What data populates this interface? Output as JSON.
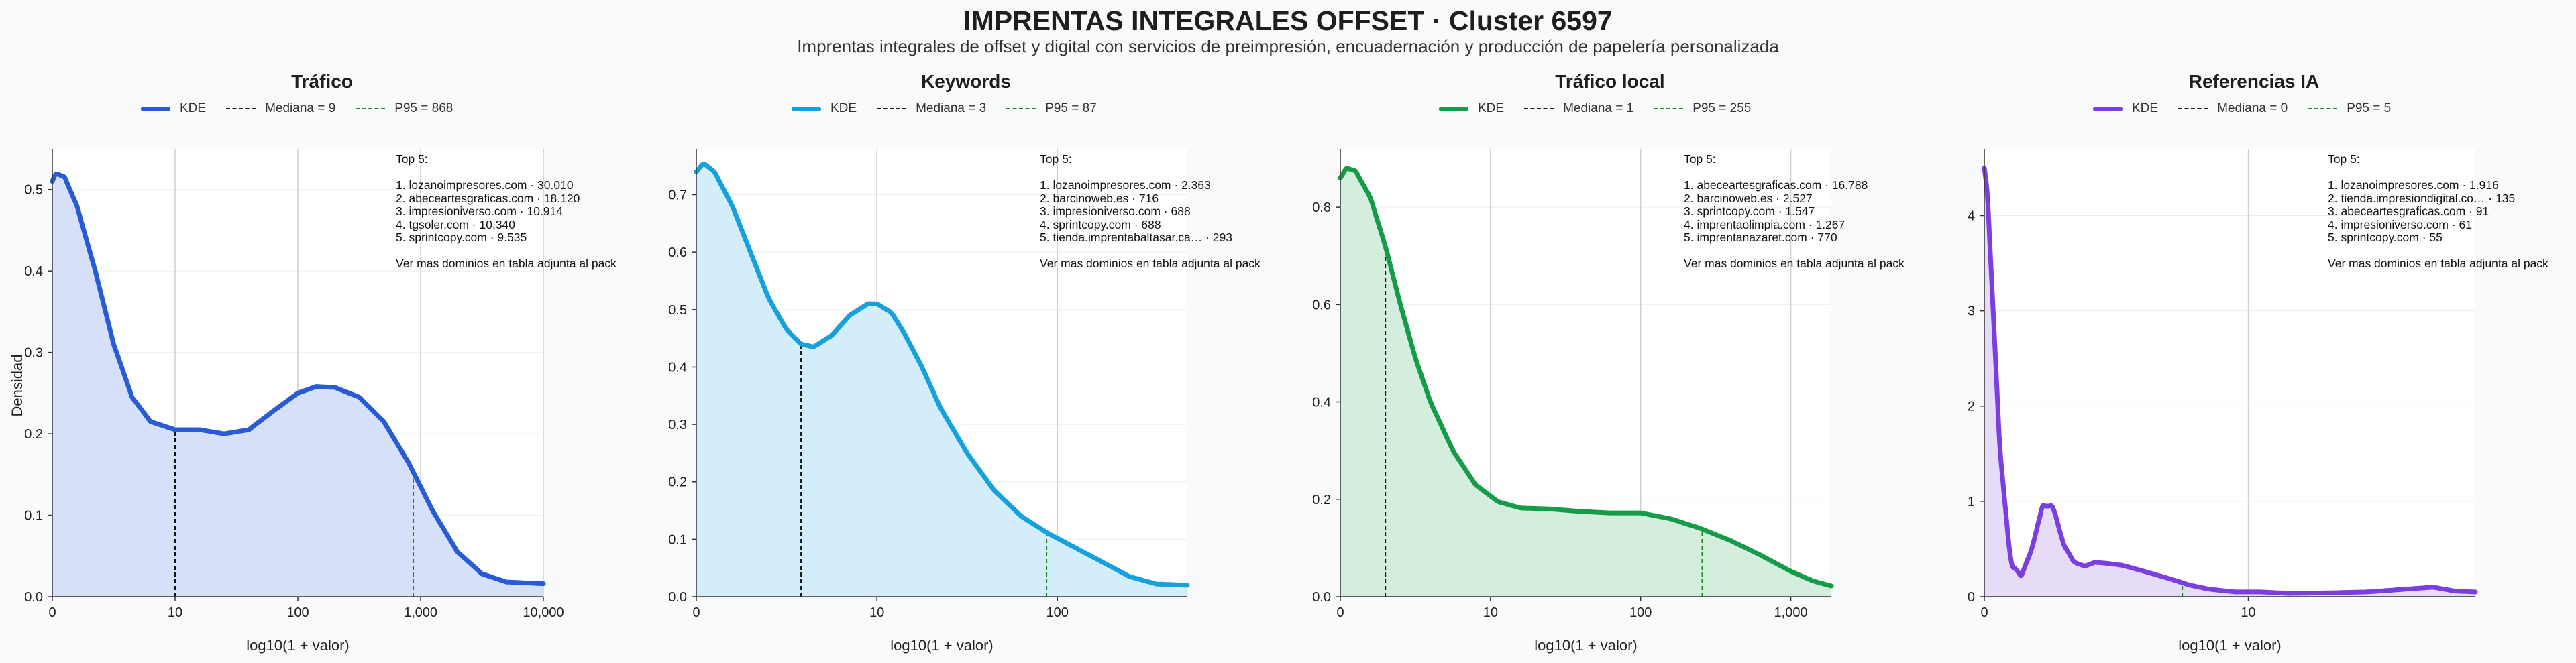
{
  "title": "IMPRENTAS INTEGRALES OFFSET · Cluster 6597",
  "subtitle": "Imprentas integrales de offset y digital con servicios de preimpresión, encuadernación y producción de papelería personalizada",
  "ylabel": "Densidad",
  "chart_data": [
    {
      "type": "area",
      "title": "Tráfico",
      "xlabel": "log10(1 + valor)",
      "ylabel": "Densidad",
      "color": "#2a5bd7",
      "fill": "#d6e0f8",
      "xlim": [
        0,
        4.0
      ],
      "ylim": [
        0,
        0.55
      ],
      "xticks": [
        0,
        1,
        2,
        3,
        4
      ],
      "xtick_labels": [
        "0",
        "10",
        "100",
        "1,000",
        "10,000"
      ],
      "yticks": [
        0,
        0.1,
        0.2,
        0.3,
        0.4,
        0.5
      ],
      "ytick_labels": [
        "0.0",
        "0.1",
        "0.2",
        "0.3",
        "0.4",
        "0.5"
      ],
      "kde": {
        "x": [
          0,
          0.03,
          0.1,
          0.2,
          0.35,
          0.5,
          0.65,
          0.8,
          1.0,
          1.2,
          1.4,
          1.6,
          1.8,
          2.0,
          2.15,
          2.3,
          2.5,
          2.7,
          2.9,
          3.1,
          3.3,
          3.5,
          3.7,
          4.0
        ],
        "y": [
          0.51,
          0.52,
          0.515,
          0.48,
          0.4,
          0.31,
          0.245,
          0.215,
          0.205,
          0.205,
          0.2,
          0.205,
          0.228,
          0.25,
          0.258,
          0.257,
          0.245,
          0.215,
          0.165,
          0.105,
          0.055,
          0.028,
          0.018,
          0.016
        ]
      },
      "median": {
        "label": "Mediana = 9",
        "value": 9,
        "x": 1.0
      },
      "p95": {
        "label": "P95 = 868",
        "value": 868,
        "x": 2.94
      },
      "legend": {
        "kde": "KDE"
      },
      "top5_title": "Top 5:",
      "top5": [
        "1. lozanoimpresores.com · 30.010",
        "2. abeceartesgraficas.com · 18.120",
        "3. impresioniverso.com · 10.914",
        "4. tgsoler.com · 10.340",
        "5. sprintcopy.com · 9.535"
      ],
      "top5_footer": "Ver mas dominios en tabla adjunta al pack"
    },
    {
      "type": "area",
      "title": "Keywords",
      "xlabel": "log10(1 + valor)",
      "ylabel": "",
      "color": "#16a0dc",
      "fill": "#d3eefa",
      "xlim": [
        0,
        2.72
      ],
      "ylim": [
        0,
        0.78
      ],
      "xticks": [
        0,
        1,
        2
      ],
      "xtick_labels": [
        "0",
        "10",
        "100"
      ],
      "yticks": [
        0,
        0.1,
        0.2,
        0.3,
        0.4,
        0.5,
        0.6,
        0.7
      ],
      "ytick_labels": [
        "0.0",
        "0.1",
        "0.2",
        "0.3",
        "0.4",
        "0.5",
        "0.6",
        "0.7"
      ],
      "kde": {
        "x": [
          0,
          0.04,
          0.1,
          0.2,
          0.3,
          0.4,
          0.5,
          0.58,
          0.65,
          0.75,
          0.85,
          0.95,
          1.0,
          1.08,
          1.15,
          1.25,
          1.35,
          1.5,
          1.65,
          1.8,
          1.95,
          2.1,
          2.25,
          2.4,
          2.55,
          2.72
        ],
        "y": [
          0.74,
          0.755,
          0.74,
          0.68,
          0.6,
          0.52,
          0.465,
          0.44,
          0.435,
          0.455,
          0.49,
          0.51,
          0.51,
          0.495,
          0.46,
          0.4,
          0.33,
          0.25,
          0.185,
          0.14,
          0.11,
          0.085,
          0.06,
          0.035,
          0.022,
          0.02
        ]
      },
      "median": {
        "label": "Mediana = 3",
        "value": 3,
        "x": 0.58
      },
      "p95": {
        "label": "P95 = 87",
        "value": 87,
        "x": 1.94
      },
      "legend": {
        "kde": "KDE"
      },
      "top5_title": "Top 5:",
      "top5": [
        "1. lozanoimpresores.com · 2.363",
        "2. barcinoweb.es · 716",
        "3. impresioniverso.com · 688",
        "4. sprintcopy.com · 688",
        "5. tienda.imprentabaltasar.ca… · 293"
      ],
      "top5_footer": "Ver mas dominios en tabla adjunta al pack"
    },
    {
      "type": "area",
      "title": "Tráfico local",
      "xlabel": "log10(1 + valor)",
      "ylabel": "",
      "color": "#169b49",
      "fill": "#d3eedd",
      "xlim": [
        0,
        3.27
      ],
      "ylim": [
        0,
        0.92
      ],
      "xticks": [
        0,
        1,
        2,
        3
      ],
      "xtick_labels": [
        "0",
        "10",
        "100",
        "1,000"
      ],
      "yticks": [
        0,
        0.2,
        0.4,
        0.6,
        0.8
      ],
      "ytick_labels": [
        "0.0",
        "0.2",
        "0.4",
        "0.6",
        "0.8"
      ],
      "kde": {
        "x": [
          0,
          0.04,
          0.1,
          0.2,
          0.3,
          0.4,
          0.5,
          0.6,
          0.75,
          0.9,
          1.05,
          1.2,
          1.4,
          1.6,
          1.8,
          2.0,
          2.2,
          2.4,
          2.6,
          2.8,
          3.0,
          3.15,
          3.27
        ],
        "y": [
          0.86,
          0.88,
          0.875,
          0.82,
          0.72,
          0.6,
          0.49,
          0.4,
          0.3,
          0.23,
          0.195,
          0.182,
          0.18,
          0.175,
          0.172,
          0.172,
          0.16,
          0.14,
          0.115,
          0.085,
          0.052,
          0.032,
          0.022
        ]
      },
      "median": {
        "label": "Mediana = 1",
        "value": 1,
        "x": 0.3
      },
      "p95": {
        "label": "P95 = 255",
        "value": 255,
        "x": 2.41
      },
      "legend": {
        "kde": "KDE"
      },
      "top5_title": "Top 5:",
      "top5": [
        "1. abeceartesgraficas.com · 16.788",
        "2. barcinoweb.es · 2.527",
        "3. sprintcopy.com · 1.547",
        "4. imprentaolimpia.com · 1.267",
        "5. imprentanazaret.com · 770"
      ],
      "top5_footer": "Ver mas dominios en tabla adjunta al pack"
    },
    {
      "type": "area",
      "title": "Referencias IA",
      "xlabel": "log10(1 + valor)",
      "ylabel": "",
      "color": "#7b3fe0",
      "fill": "#e6dcf8",
      "xlim": [
        0,
        1.86
      ],
      "ylim": [
        0,
        4.7
      ],
      "xticks": [
        0,
        1
      ],
      "xtick_labels": [
        "0",
        "10"
      ],
      "yticks": [
        0,
        1,
        2,
        3,
        4
      ],
      "ytick_labels": [
        "0",
        "1",
        "2",
        "3",
        "4"
      ],
      "kde": {
        "x": [
          0,
          0.01,
          0.03,
          0.06,
          0.1,
          0.14,
          0.18,
          0.22,
          0.26,
          0.3,
          0.34,
          0.38,
          0.42,
          0.46,
          0.52,
          0.6,
          0.7,
          0.78,
          0.85,
          0.95,
          1.05,
          1.15,
          1.3,
          1.45,
          1.6,
          1.7,
          1.78,
          1.86
        ],
        "y": [
          4.5,
          4.3,
          3.2,
          1.5,
          0.35,
          0.22,
          0.5,
          0.95,
          0.95,
          0.55,
          0.36,
          0.32,
          0.36,
          0.35,
          0.33,
          0.27,
          0.19,
          0.12,
          0.08,
          0.05,
          0.05,
          0.035,
          0.04,
          0.05,
          0.08,
          0.1,
          0.06,
          0.05
        ]
      },
      "median": {
        "label": "Mediana = 0",
        "value": 0,
        "x": 0.0
      },
      "p95": {
        "label": "P95 = 5",
        "value": 5,
        "x": 0.75
      },
      "legend": {
        "kde": "KDE"
      },
      "top5_title": "Top 5:",
      "top5": [
        "1. lozanoimpresores.com · 1.916",
        "2. tienda.impresiondigital.co… · 135",
        "3. abeceartesgraficas.com · 91",
        "4. impresioniverso.com · 61",
        "5. sprintcopy.com · 55"
      ],
      "top5_footer": "Ver mas dominios en tabla adjunta al pack"
    }
  ]
}
